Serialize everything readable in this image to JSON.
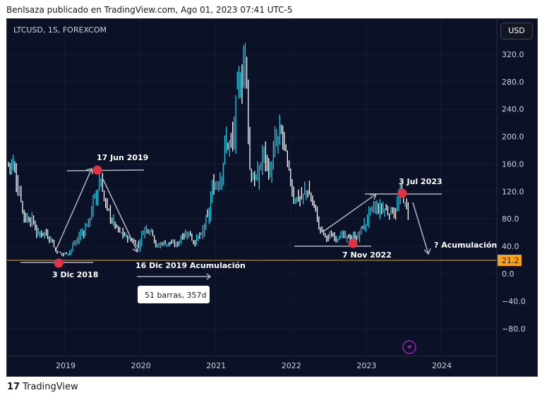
{
  "header": "Benlsaza publicado en TradingView.com, Ago 01, 2023 07:41 UTC-5",
  "symbol": "LTCUSD, 1S, FOREXCOM",
  "currency": "USD",
  "footer": "TradingView",
  "colors": {
    "background": "#0b1127",
    "up": "#22c7e0",
    "down": "#ffffff",
    "marker": "#e03345",
    "price_line": "#f7a21b"
  },
  "chart_data": {
    "type": "bar",
    "interval": "1W",
    "y_ticks": [
      320,
      280,
      240,
      200,
      160,
      120,
      80,
      40,
      0,
      -40,
      -80
    ],
    "y_tick_labels": [
      "320.0",
      "280.0",
      "240.0",
      "200.0",
      "160.0",
      "120.0",
      "80.0",
      "40.0",
      "0.0",
      "−40.0",
      "−80.0"
    ],
    "x_ticks": [
      "2019",
      "2020",
      "2021",
      "2022",
      "2023",
      "2024"
    ],
    "last_price": "21.2",
    "monthly_close": {
      "months": [
        "2018-04",
        "2018-05",
        "2018-06",
        "2018-07",
        "2018-08",
        "2018-09",
        "2018-10",
        "2018-11",
        "2018-12",
        "2019-01",
        "2019-02",
        "2019-03",
        "2019-04",
        "2019-05",
        "2019-06",
        "2019-07",
        "2019-08",
        "2019-09",
        "2019-10",
        "2019-11",
        "2019-12",
        "2020-01",
        "2020-02",
        "2020-03",
        "2020-04",
        "2020-05",
        "2020-06",
        "2020-07",
        "2020-08",
        "2020-09",
        "2020-10",
        "2020-11",
        "2020-12",
        "2021-01",
        "2021-02",
        "2021-03",
        "2021-04",
        "2021-05",
        "2021-06",
        "2021-07",
        "2021-08",
        "2021-09",
        "2021-10",
        "2021-11",
        "2021-12",
        "2022-01",
        "2022-02",
        "2022-03",
        "2022-04",
        "2022-05",
        "2022-06",
        "2022-07",
        "2022-08",
        "2022-09",
        "2022-10",
        "2022-11",
        "2022-12",
        "2023-01",
        "2023-02",
        "2023-03",
        "2023-04",
        "2023-05",
        "2023-06",
        "2023-07"
      ],
      "values": [
        160,
        120,
        80,
        80,
        58,
        60,
        52,
        32,
        28,
        32,
        45,
        60,
        75,
        110,
        135,
        95,
        75,
        60,
        55,
        48,
        42,
        65,
        65,
        40,
        45,
        45,
        42,
        55,
        60,
        46,
        55,
        80,
        125,
        140,
        190,
        190,
        270,
        320,
        140,
        140,
        175,
        150,
        190,
        200,
        145,
        110,
        110,
        120,
        100,
        65,
        52,
        55,
        55,
        53,
        52,
        55,
        70,
        90,
        95,
        95,
        90,
        90,
        115,
        92
      ]
    },
    "annotations": [
      {
        "text": "17 Jun 2019"
      },
      {
        "text": "3 Dic 2018"
      },
      {
        "text": "16 Dic 2019 Acumulación"
      },
      {
        "text": "51 barras, 357d"
      },
      {
        "text": "3 Jul 2023"
      },
      {
        "text": "7 Nov 2022"
      },
      {
        "text": "? Acumulación"
      }
    ]
  }
}
